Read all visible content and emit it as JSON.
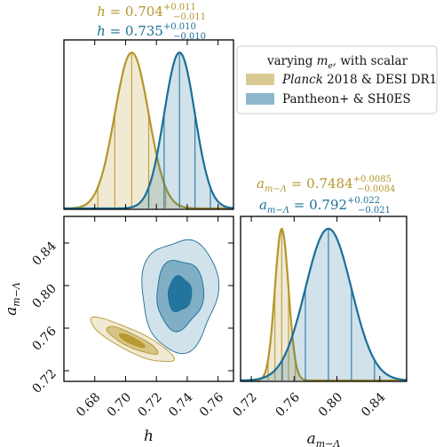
{
  "chart_data": {
    "type": "triangle",
    "colors": {
      "planck": "#b5962a",
      "pantheon": "#1a6f98"
    },
    "legend": {
      "title_pre": "varying ",
      "title_var": "m",
      "title_sub": "e",
      "title_post": ", with scalar",
      "entries": [
        {
          "pre": "Planck",
          "post": " 2018 & DESI DR1"
        },
        {
          "pre": "Pantheon+ & SH0ES",
          "post": ""
        }
      ]
    },
    "h_axis": {
      "label": "h",
      "range": [
        0.66,
        0.77
      ],
      "ticks": [
        "0.68",
        "0.70",
        "0.72",
        "0.74",
        "0.76"
      ],
      "tick_values": [
        0.68,
        0.7,
        0.72,
        0.74,
        0.76
      ]
    },
    "a_axis": {
      "label_var": "a",
      "label_sub": "m−Λ",
      "range": [
        0.71,
        0.865
      ],
      "ticks": [
        "0.72",
        "0.76",
        "0.80",
        "0.84"
      ],
      "tick_values": [
        0.72,
        0.76,
        0.8,
        0.84
      ]
    },
    "annotations": {
      "h_planck": {
        "var": "h",
        "sub": "",
        "value": "0.704",
        "plus": "+0.011",
        "minus": "−0.011"
      },
      "h_pantheon": {
        "var": "h",
        "sub": "",
        "value": "0.735",
        "plus": "+0.010",
        "minus": "−0.010"
      },
      "a_planck": {
        "var": "a",
        "sub": "m−Λ",
        "value": "0.7484",
        "plus": "+0.0085",
        "minus": "−0.0084"
      },
      "a_pantheon": {
        "var": "a",
        "sub": "m−Λ",
        "value": "0.792",
        "plus": "+0.022",
        "minus": "−0.021"
      }
    },
    "series": [
      {
        "name": "Planck 2018 & DESI DR1",
        "h_mean": 0.704,
        "h_sigma": 0.011,
        "a_mean": 0.7484,
        "a_sigma": 0.0085,
        "correlation": -0.85
      },
      {
        "name": "Pantheon+ & SH0ES",
        "h_mean": 0.735,
        "h_sigma": 0.01,
        "a_mean": 0.792,
        "a_sigma": 0.0215,
        "correlation": 0.05
      }
    ]
  }
}
